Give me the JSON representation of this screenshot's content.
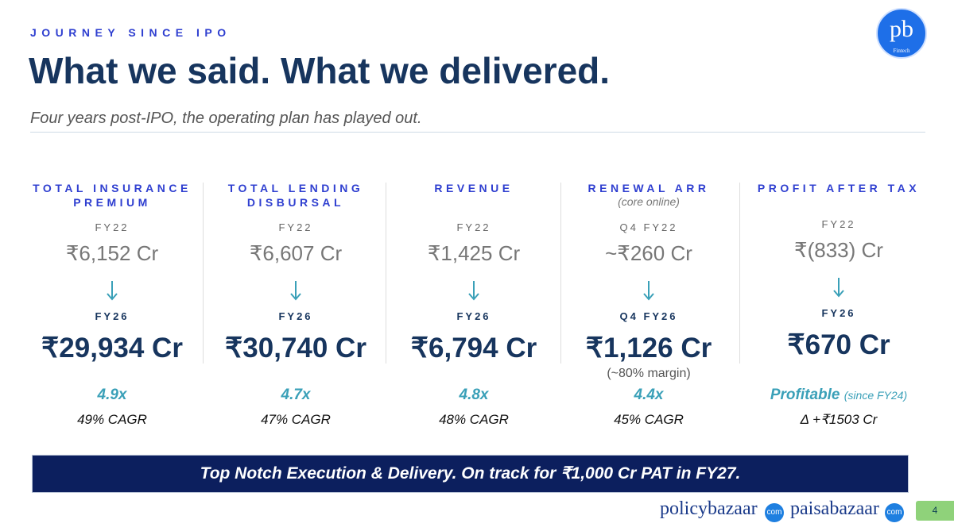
{
  "header": {
    "eyebrow": "JOURNEY SINCE IPO",
    "title": "What we said. What we delivered.",
    "subtitle": "Four years post-IPO, the operating plan has played out."
  },
  "logo": {
    "text": "pb",
    "sub": "Fintech"
  },
  "columns": [
    {
      "title_lines": [
        "TOTAL INSURANCE",
        "PREMIUM"
      ],
      "from_label": "FY22",
      "from_value": "₹6,152 Cr",
      "to_label": "FY26",
      "to_value": "₹29,934 Cr",
      "multiple": "4.9x",
      "cagr": "49% CAGR"
    },
    {
      "title_lines": [
        "TOTAL LENDING",
        "DISBURSAL"
      ],
      "from_label": "FY22",
      "from_value": "₹6,607 Cr",
      "to_label": "FY26",
      "to_value": "₹30,740 Cr",
      "multiple": "4.7x",
      "cagr": "47% CAGR"
    },
    {
      "title_lines": [
        "REVENUE"
      ],
      "from_label": "FY22",
      "from_value": "₹1,425 Cr",
      "to_label": "FY26",
      "to_value": "₹6,794 Cr",
      "multiple": "4.8x",
      "cagr": "48% CAGR"
    },
    {
      "title_lines": [
        "RENEWAL ARR"
      ],
      "subtitle": "(core online)",
      "from_label": "Q4 FY22",
      "from_value": "~₹260 Cr",
      "to_label": "Q4 FY26",
      "to_value": "₹1,126 Cr",
      "note": "(~80% margin)",
      "multiple": "4.4x",
      "cagr": "45% CAGR"
    },
    {
      "title_lines": [
        "PROFIT AFTER TAX"
      ],
      "from_label": "FY22",
      "from_value": "₹(833) Cr",
      "to_label": "FY26",
      "to_value": "₹670 Cr",
      "multiple": "Profitable",
      "multiple_note": "(since FY24)",
      "cagr": "Δ +₹1503 Cr"
    }
  ],
  "banner": "Top Notch Execution & Delivery. On track for ₹1,000 Cr PAT in FY27.",
  "footer": {
    "brand1": "policybazaar",
    "brand1_badge": "com",
    "brand2": "paisabazaar",
    "brand2_badge": "com",
    "page": "4"
  }
}
